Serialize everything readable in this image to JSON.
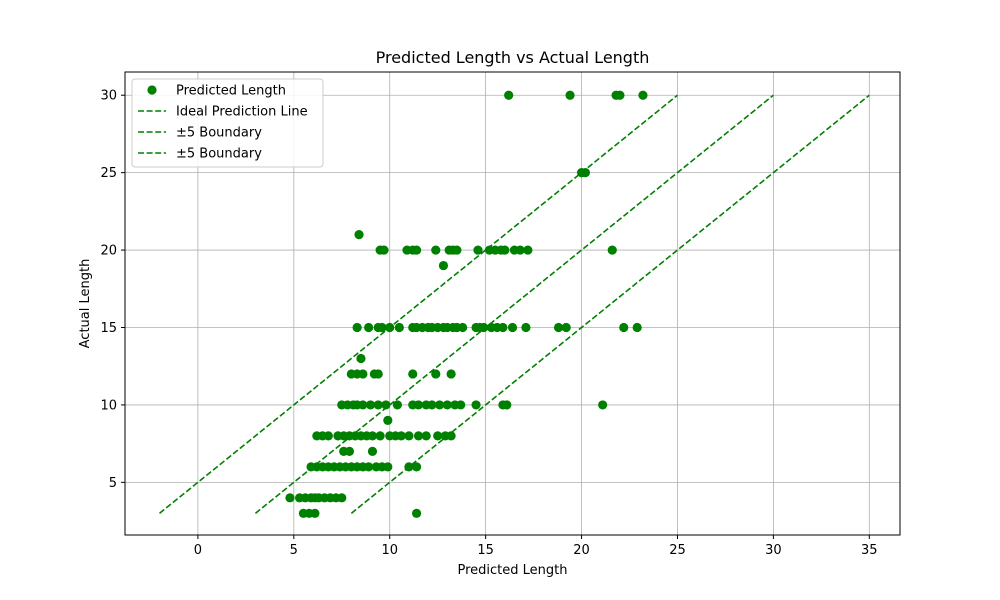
{
  "chart_data": {
    "type": "scatter",
    "title": "Predicted Length vs Actual Length",
    "xlabel": "Predicted Length",
    "ylabel": "Actual Length",
    "xlim": [
      -3.8,
      36.6
    ],
    "ylim": [
      1.6,
      31.5
    ],
    "xticks": [
      0,
      5,
      10,
      15,
      20,
      25,
      30,
      35
    ],
    "yticks": [
      5,
      10,
      15,
      20,
      25,
      30
    ],
    "grid": true,
    "legend_position": "top-left",
    "colors": {
      "points": "#008000",
      "lines": "#008000"
    },
    "series": [
      {
        "name": "Predicted Length",
        "kind": "scatter",
        "points": [
          [
            16.2,
            30
          ],
          [
            19.4,
            30
          ],
          [
            21.8,
            30
          ],
          [
            22.0,
            30
          ],
          [
            23.2,
            30
          ],
          [
            20.0,
            25
          ],
          [
            20.2,
            25
          ],
          [
            8.4,
            21
          ],
          [
            9.5,
            20
          ],
          [
            9.7,
            20
          ],
          [
            10.9,
            20
          ],
          [
            11.2,
            20
          ],
          [
            11.4,
            20
          ],
          [
            12.4,
            20
          ],
          [
            13.1,
            20
          ],
          [
            13.3,
            20
          ],
          [
            13.5,
            20
          ],
          [
            14.6,
            20
          ],
          [
            15.2,
            20
          ],
          [
            15.5,
            20
          ],
          [
            15.8,
            20
          ],
          [
            16.0,
            20
          ],
          [
            16.5,
            20
          ],
          [
            16.8,
            20
          ],
          [
            17.2,
            20
          ],
          [
            21.6,
            20
          ],
          [
            12.8,
            19
          ],
          [
            8.3,
            15
          ],
          [
            8.9,
            15
          ],
          [
            9.4,
            15
          ],
          [
            9.6,
            15
          ],
          [
            10.0,
            15
          ],
          [
            10.5,
            15
          ],
          [
            11.2,
            15
          ],
          [
            11.4,
            15
          ],
          [
            11.7,
            15
          ],
          [
            12.0,
            15
          ],
          [
            12.2,
            15
          ],
          [
            12.5,
            15
          ],
          [
            12.8,
            15
          ],
          [
            13.0,
            15
          ],
          [
            13.3,
            15
          ],
          [
            13.5,
            15
          ],
          [
            13.8,
            15
          ],
          [
            14.5,
            15
          ],
          [
            14.7,
            15
          ],
          [
            14.9,
            15
          ],
          [
            15.3,
            15
          ],
          [
            15.6,
            15
          ],
          [
            15.9,
            15
          ],
          [
            16.4,
            15
          ],
          [
            17.1,
            15
          ],
          [
            18.8,
            15
          ],
          [
            19.2,
            15
          ],
          [
            22.2,
            15
          ],
          [
            22.9,
            15
          ],
          [
            8.5,
            13
          ],
          [
            8.0,
            12
          ],
          [
            8.3,
            12
          ],
          [
            8.6,
            12
          ],
          [
            9.2,
            12
          ],
          [
            9.4,
            12
          ],
          [
            11.2,
            12
          ],
          [
            12.4,
            12
          ],
          [
            13.2,
            12
          ],
          [
            7.5,
            10
          ],
          [
            7.8,
            10
          ],
          [
            8.1,
            10
          ],
          [
            8.3,
            10
          ],
          [
            8.6,
            10
          ],
          [
            9.0,
            10
          ],
          [
            9.4,
            10
          ],
          [
            9.8,
            10
          ],
          [
            10.4,
            10
          ],
          [
            11.2,
            10
          ],
          [
            11.5,
            10
          ],
          [
            11.9,
            10
          ],
          [
            12.2,
            10
          ],
          [
            12.6,
            10
          ],
          [
            13.0,
            10
          ],
          [
            13.4,
            10
          ],
          [
            13.7,
            10
          ],
          [
            14.5,
            10
          ],
          [
            15.9,
            10
          ],
          [
            16.1,
            10
          ],
          [
            21.1,
            10
          ],
          [
            9.9,
            9
          ],
          [
            6.2,
            8
          ],
          [
            6.5,
            8
          ],
          [
            6.8,
            8
          ],
          [
            7.3,
            8
          ],
          [
            7.6,
            8
          ],
          [
            7.9,
            8
          ],
          [
            8.2,
            8
          ],
          [
            8.5,
            8
          ],
          [
            8.8,
            8
          ],
          [
            9.1,
            8
          ],
          [
            9.5,
            8
          ],
          [
            10.0,
            8
          ],
          [
            10.3,
            8
          ],
          [
            10.6,
            8
          ],
          [
            11.0,
            8
          ],
          [
            11.5,
            8
          ],
          [
            11.9,
            8
          ],
          [
            12.5,
            8
          ],
          [
            12.9,
            8
          ],
          [
            13.2,
            8
          ],
          [
            7.6,
            7
          ],
          [
            7.9,
            7
          ],
          [
            9.1,
            7
          ],
          [
            5.9,
            6
          ],
          [
            6.2,
            6
          ],
          [
            6.5,
            6
          ],
          [
            6.8,
            6
          ],
          [
            7.1,
            6
          ],
          [
            7.4,
            6
          ],
          [
            7.7,
            6
          ],
          [
            8.0,
            6
          ],
          [
            8.3,
            6
          ],
          [
            8.6,
            6
          ],
          [
            8.9,
            6
          ],
          [
            9.3,
            6
          ],
          [
            9.6,
            6
          ],
          [
            9.9,
            6
          ],
          [
            11.0,
            6
          ],
          [
            11.4,
            6
          ],
          [
            4.8,
            4
          ],
          [
            5.3,
            4
          ],
          [
            5.6,
            4
          ],
          [
            5.9,
            4
          ],
          [
            6.1,
            4
          ],
          [
            6.3,
            4
          ],
          [
            6.6,
            4
          ],
          [
            6.9,
            4
          ],
          [
            7.2,
            4
          ],
          [
            7.5,
            4
          ],
          [
            5.5,
            3
          ],
          [
            5.8,
            3
          ],
          [
            6.1,
            3
          ],
          [
            11.4,
            3
          ]
        ]
      },
      {
        "name": "Ideal Prediction Line",
        "kind": "line",
        "dashed": true,
        "x": [
          3,
          30
        ],
        "y": [
          3,
          30
        ]
      },
      {
        "name": "±5 Boundary",
        "kind": "line",
        "dashed": true,
        "x": [
          -2,
          25
        ],
        "y": [
          3,
          30
        ]
      },
      {
        "name": "±5 Boundary",
        "kind": "line",
        "dashed": true,
        "x": [
          8,
          35
        ],
        "y": [
          3,
          30
        ]
      }
    ]
  }
}
